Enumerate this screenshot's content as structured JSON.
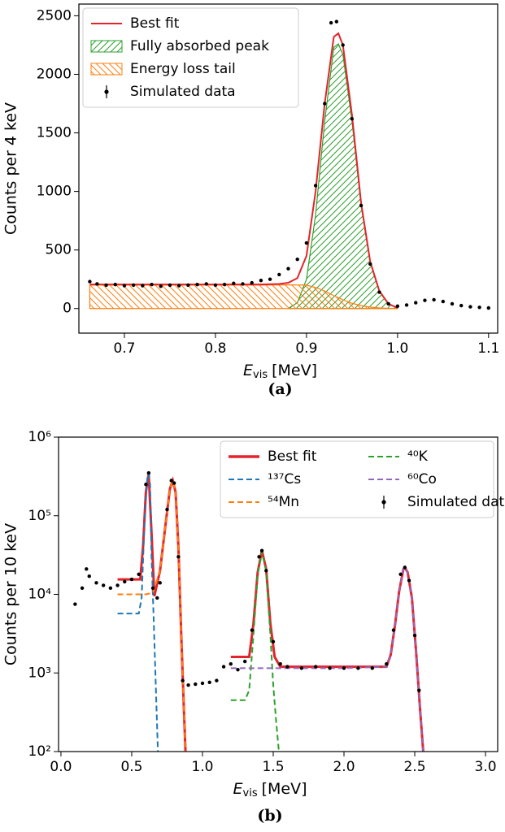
{
  "chart_data": [
    {
      "type": "line",
      "caption": "(a)",
      "ylabel": "Counts per 4 keV",
      "xlabel": {
        "symbol": "E",
        "subscript": "vis",
        "unit": "[MeV]"
      },
      "xlim": [
        0.65,
        1.11
      ],
      "ylim": [
        -210,
        2600
      ],
      "xticks": [
        0.7,
        0.8,
        0.9,
        {
          "value": 1,
          "label": "1.0"
        },
        1.1
      ],
      "yticks": [
        0,
        500,
        1000,
        1500,
        2000,
        2500
      ],
      "log_y": false,
      "legend": "upper left",
      "legend_columns": 1,
      "series": [
        {
          "name": "Best fit",
          "type": "line",
          "color": "#e3242b",
          "linestyle": "solid",
          "x": [
            0.662,
            0.7,
            0.75,
            0.8,
            0.85,
            0.87,
            0.88,
            0.89,
            0.9,
            0.91,
            0.92,
            0.93,
            0.935,
            0.94,
            0.95,
            0.96,
            0.97,
            0.98,
            0.99,
            1.0
          ],
          "values": [
            205,
            205,
            205,
            205,
            205,
            210,
            220,
            260,
            450,
            1000,
            1750,
            2320,
            2350,
            2250,
            1650,
            900,
            400,
            150,
            40,
            5
          ]
        },
        {
          "name": "Fully absorbed peak",
          "type": "area",
          "color": "#2ca02c",
          "hatch": "/",
          "x": [
            0.88,
            0.89,
            0.9,
            0.91,
            0.92,
            0.93,
            0.935,
            0.94,
            0.95,
            0.96,
            0.97,
            0.98,
            0.99,
            1.0
          ],
          "values": [
            0,
            50,
            250,
            800,
            1600,
            2230,
            2260,
            2170,
            1600,
            880,
            390,
            145,
            38,
            5
          ]
        },
        {
          "name": "Energy loss tail",
          "type": "area",
          "color": "#ff7f0e",
          "hatch": "\\",
          "x": [
            0.662,
            0.7,
            0.75,
            0.8,
            0.85,
            0.88,
            0.9,
            0.91,
            0.92,
            0.93,
            0.94,
            0.95,
            0.96,
            0.97,
            0.98,
            0.99,
            1.0
          ],
          "values": [
            200,
            200,
            200,
            200,
            200,
            202,
            200,
            180,
            150,
            110,
            75,
            45,
            25,
            12,
            5,
            2,
            0
          ]
        },
        {
          "name": "Simulated data",
          "type": "scatter",
          "color": "#000000",
          "x": [
            0.662,
            0.67,
            0.68,
            0.69,
            0.7,
            0.71,
            0.72,
            0.73,
            0.74,
            0.75,
            0.76,
            0.77,
            0.78,
            0.79,
            0.8,
            0.81,
            0.82,
            0.83,
            0.84,
            0.85,
            0.86,
            0.87,
            0.88,
            0.89,
            0.9,
            0.91,
            0.92,
            0.927,
            0.933,
            0.94,
            0.95,
            0.96,
            0.97,
            0.98,
            0.99,
            1.0,
            1.01,
            1.02,
            1.03,
            1.04,
            1.05,
            1.06,
            1.07,
            1.08,
            1.09,
            1.1
          ],
          "values": [
            230,
            210,
            200,
            205,
            195,
            200,
            195,
            205,
            190,
            200,
            195,
            200,
            205,
            210,
            200,
            205,
            215,
            210,
            220,
            240,
            250,
            290,
            340,
            420,
            560,
            1050,
            1750,
            2440,
            2450,
            2250,
            1620,
            880,
            380,
            140,
            40,
            20,
            30,
            50,
            70,
            75,
            60,
            40,
            25,
            15,
            10,
            5
          ]
        }
      ]
    },
    {
      "type": "line",
      "caption": "(b)",
      "ylabel": "Counts per 10 keV",
      "xlabel": {
        "symbol": "E",
        "subscript": "vis",
        "unit": "[MeV]"
      },
      "xlim": [
        -0.017,
        3.086
      ],
      "ylim": [
        100,
        1000000
      ],
      "xticks": [
        {
          "value": 0,
          "label": "0.0"
        },
        0.5,
        {
          "value": 1,
          "label": "1.0"
        },
        1.5,
        {
          "value": 2,
          "label": "2.0"
        },
        2.5,
        {
          "value": 3,
          "label": "3.0"
        }
      ],
      "yticks": [
        {
          "value": 100,
          "label": "10²"
        },
        {
          "value": 1000,
          "label": "10³"
        },
        {
          "value": 10000,
          "label": "10⁴"
        },
        {
          "value": 100000,
          "label": "10⁵"
        },
        {
          "value": 1000000,
          "label": "10⁶"
        }
      ],
      "log_y": true,
      "legend": "upper right",
      "legend_columns": 2,
      "series": [
        {
          "name": "Best fit",
          "type": "line",
          "color": "#e3242b",
          "linestyle": "thick",
          "x": [
            0.4,
            0.56,
            0.58,
            0.6,
            0.62,
            0.64,
            0.66,
            0.7,
            0.74,
            0.77,
            0.79,
            0.81,
            0.83,
            0.85,
            0.87,
            0.88,
            1.0,
            1.2,
            1.33,
            1.36,
            1.39,
            1.42,
            1.45,
            1.48,
            1.51,
            1.55,
            2.0,
            2.3,
            2.33,
            2.36,
            2.39,
            2.42,
            2.43,
            2.45,
            2.48,
            2.51,
            2.54,
            2.56
          ],
          "values": [
            15500,
            15500,
            40000,
            200000,
            340000,
            60000,
            9500,
            20000,
            80000,
            220000,
            280000,
            200000,
            40000,
            3000,
            300,
            100,
            null,
            1600,
            1600,
            4200,
            19000,
            36000,
            21000,
            4200,
            1600,
            1200,
            1200,
            1200,
            1700,
            4000,
            11000,
            21000,
            22000,
            19000,
            9000,
            1800,
            300,
            100
          ]
        },
        {
          "name": "¹³⁷Cs",
          "type": "line",
          "color": "#1f77b4",
          "linestyle": "dashed",
          "x": [
            0.4,
            0.55,
            0.57,
            0.59,
            0.61,
            0.62,
            0.63,
            0.64,
            0.655,
            0.67,
            0.685
          ],
          "values": [
            5700,
            5700,
            9000,
            80000,
            300000,
            340000,
            250000,
            30000,
            5000,
            700,
            100
          ]
        },
        {
          "name": "⁵⁴Mn",
          "type": "line",
          "color": "#ff7f0e",
          "linestyle": "dashed",
          "x": [
            0.4,
            0.55,
            0.6,
            0.65,
            0.7,
            0.74,
            0.77,
            0.79,
            0.81,
            0.83,
            0.85,
            0.87,
            0.88
          ],
          "values": [
            10000,
            10000,
            10000,
            10500,
            20000,
            80000,
            220000,
            280000,
            200000,
            40000,
            3000,
            300,
            100
          ]
        },
        {
          "name": "⁴⁰K",
          "type": "line",
          "color": "#2ca02c",
          "linestyle": "dashed",
          "x": [
            1.2,
            1.3,
            1.33,
            1.36,
            1.39,
            1.42,
            1.45,
            1.48,
            1.5,
            1.52,
            1.54
          ],
          "values": [
            450,
            450,
            600,
            3000,
            18000,
            35000,
            20000,
            3000,
            700,
            250,
            100
          ]
        },
        {
          "name": "⁶⁰Co",
          "type": "line",
          "color": "#9467bd",
          "linestyle": "dashed",
          "x": [
            1.2,
            1.5,
            2.0,
            2.3,
            2.33,
            2.36,
            2.39,
            2.42,
            2.43,
            2.45,
            2.48,
            2.51,
            2.54,
            2.56
          ],
          "values": [
            1150,
            1150,
            1150,
            1200,
            1700,
            4000,
            11000,
            21000,
            22000,
            19000,
            9000,
            1800,
            300,
            100
          ]
        },
        {
          "name": "Simulated data",
          "type": "scatter",
          "color": "#000000",
          "x": [
            0.1,
            0.15,
            0.18,
            0.2,
            0.25,
            0.3,
            0.35,
            0.4,
            0.45,
            0.5,
            0.55,
            0.6,
            0.62,
            0.65,
            0.68,
            0.7,
            0.75,
            0.78,
            0.8,
            0.83,
            0.86,
            0.9,
            0.95,
            1.0,
            1.05,
            1.1,
            1.15,
            1.2,
            1.25,
            1.3,
            1.35,
            1.4,
            1.42,
            1.45,
            1.5,
            1.55,
            1.6,
            1.7,
            1.8,
            1.9,
            2.0,
            2.1,
            2.2,
            2.3,
            2.35,
            2.4,
            2.43,
            2.46,
            2.5,
            2.53
          ],
          "values": [
            7500,
            12000,
            21000,
            17000,
            14000,
            13000,
            12000,
            13000,
            14500,
            15500,
            18000,
            250000,
            350000,
            12000,
            9000,
            14000,
            120000,
            280000,
            260000,
            30000,
            800,
            700,
            720,
            740,
            760,
            800,
            1200,
            1300,
            1100,
            1400,
            3500,
            30000,
            36000,
            20000,
            2500,
            1300,
            1200,
            1150,
            1200,
            1150,
            1150,
            1150,
            1150,
            1300,
            3500,
            18000,
            22000,
            15000,
            3000,
            600
          ]
        }
      ]
    }
  ]
}
